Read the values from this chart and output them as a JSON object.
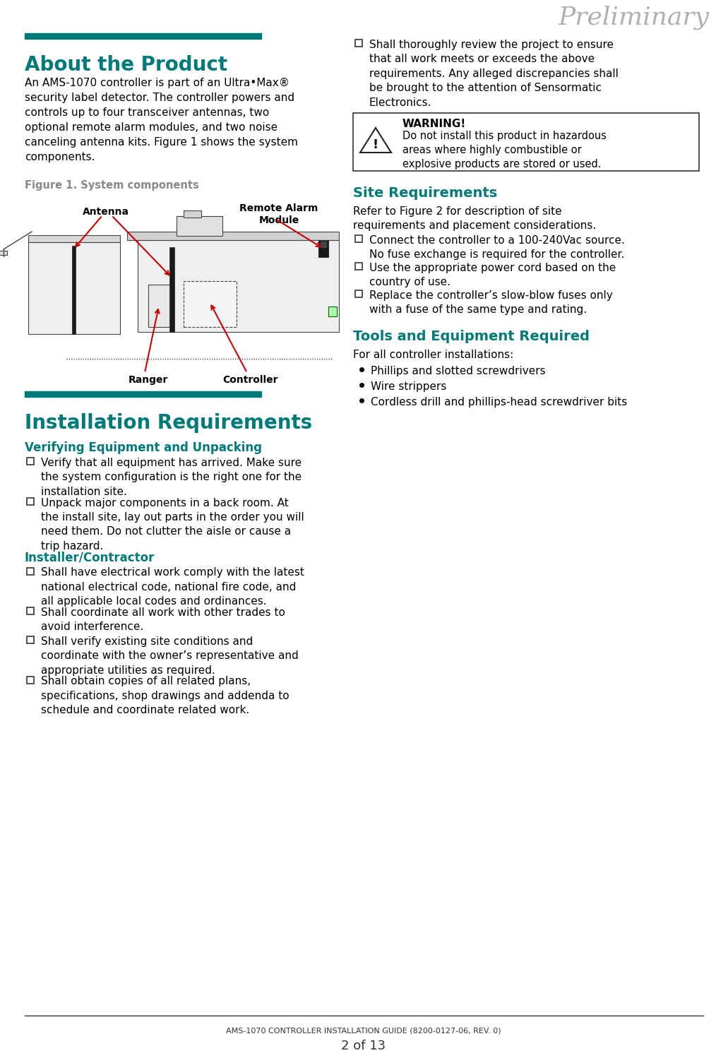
{
  "title_watermark": "Preliminary",
  "teal_color": "#007A7A",
  "red_color": "#CC0000",
  "gray_color": "#808080",
  "bg_color": "#FFFFFF",
  "footer_line": "AMS-1070 CONTROLLER INSTALLATION GUIDE (8200-0127-06, REV. 0)",
  "footer_page": "2 of 13",
  "left_col": {
    "section1_title": "About the Product",
    "section1_body": "An AMS-1070 controller is part of an Ultra•Max®\nsecurity label detector. The controller powers and\ncontrols up to four transceiver antennas, two\noptional remote alarm modules, and two noise\ncanceling antenna kits. Figure 1 shows the system\ncomponents.",
    "figure_caption": "Figure 1. System components",
    "section2_title": "Installation Requirements",
    "section2_sub1": "Verifying Equipment and Unpacking",
    "section2_items1": [
      "Verify that all equipment has arrived. Make sure\nthe system configuration is the right one for the\ninstallation site.",
      "Unpack major components in a back room. At\nthe install site, lay out parts in the order you will\nneed them. Do not clutter the aisle or cause a\ntrip hazard."
    ],
    "section2_sub2": "Installer/Contractor",
    "section2_items2": [
      "Shall have electrical work comply with the latest\nnational electrical code, national fire code, and\nall applicable local codes and ordinances.",
      "Shall coordinate all work with other trades to\navoid interference.",
      "Shall verify existing site conditions and\ncoordinate with the owner’s representative and\nappropriate utilities as required.",
      "Shall obtain copies of all related plans,\nspecifications, shop drawings and addenda to\nschedule and coordinate related work."
    ]
  },
  "right_col": {
    "item_last": "Shall thoroughly review the project to ensure\nthat all work meets or exceeds the above\nrequirements. Any alleged discrepancies shall\nbe brought to the attention of Sensormatic\nElectronics.",
    "warning_title": "WARNING!",
    "warning_body": "Do not install this product in hazardous\nareas where highly combustible or\nexplosive products are stored or used.",
    "site_title": "Site Requirements",
    "site_intro": "Refer to Figure 2 for description of site\nrequirements and placement considerations.",
    "site_items": [
      "Connect the controller to a 100-240Vac source.\nNo fuse exchange is required for the controller.",
      "Use the appropriate power cord based on the\ncountry of use.",
      "Replace the controller’s slow-blow fuses only\nwith a fuse of the same type and rating."
    ],
    "tools_title": "Tools and Equipment Required",
    "tools_intro": "For all controller installations:",
    "tools_items": [
      "Phillips and slotted screwdrivers",
      "Wire strippers",
      "Cordless drill and phillips-head screwdriver bits"
    ]
  }
}
